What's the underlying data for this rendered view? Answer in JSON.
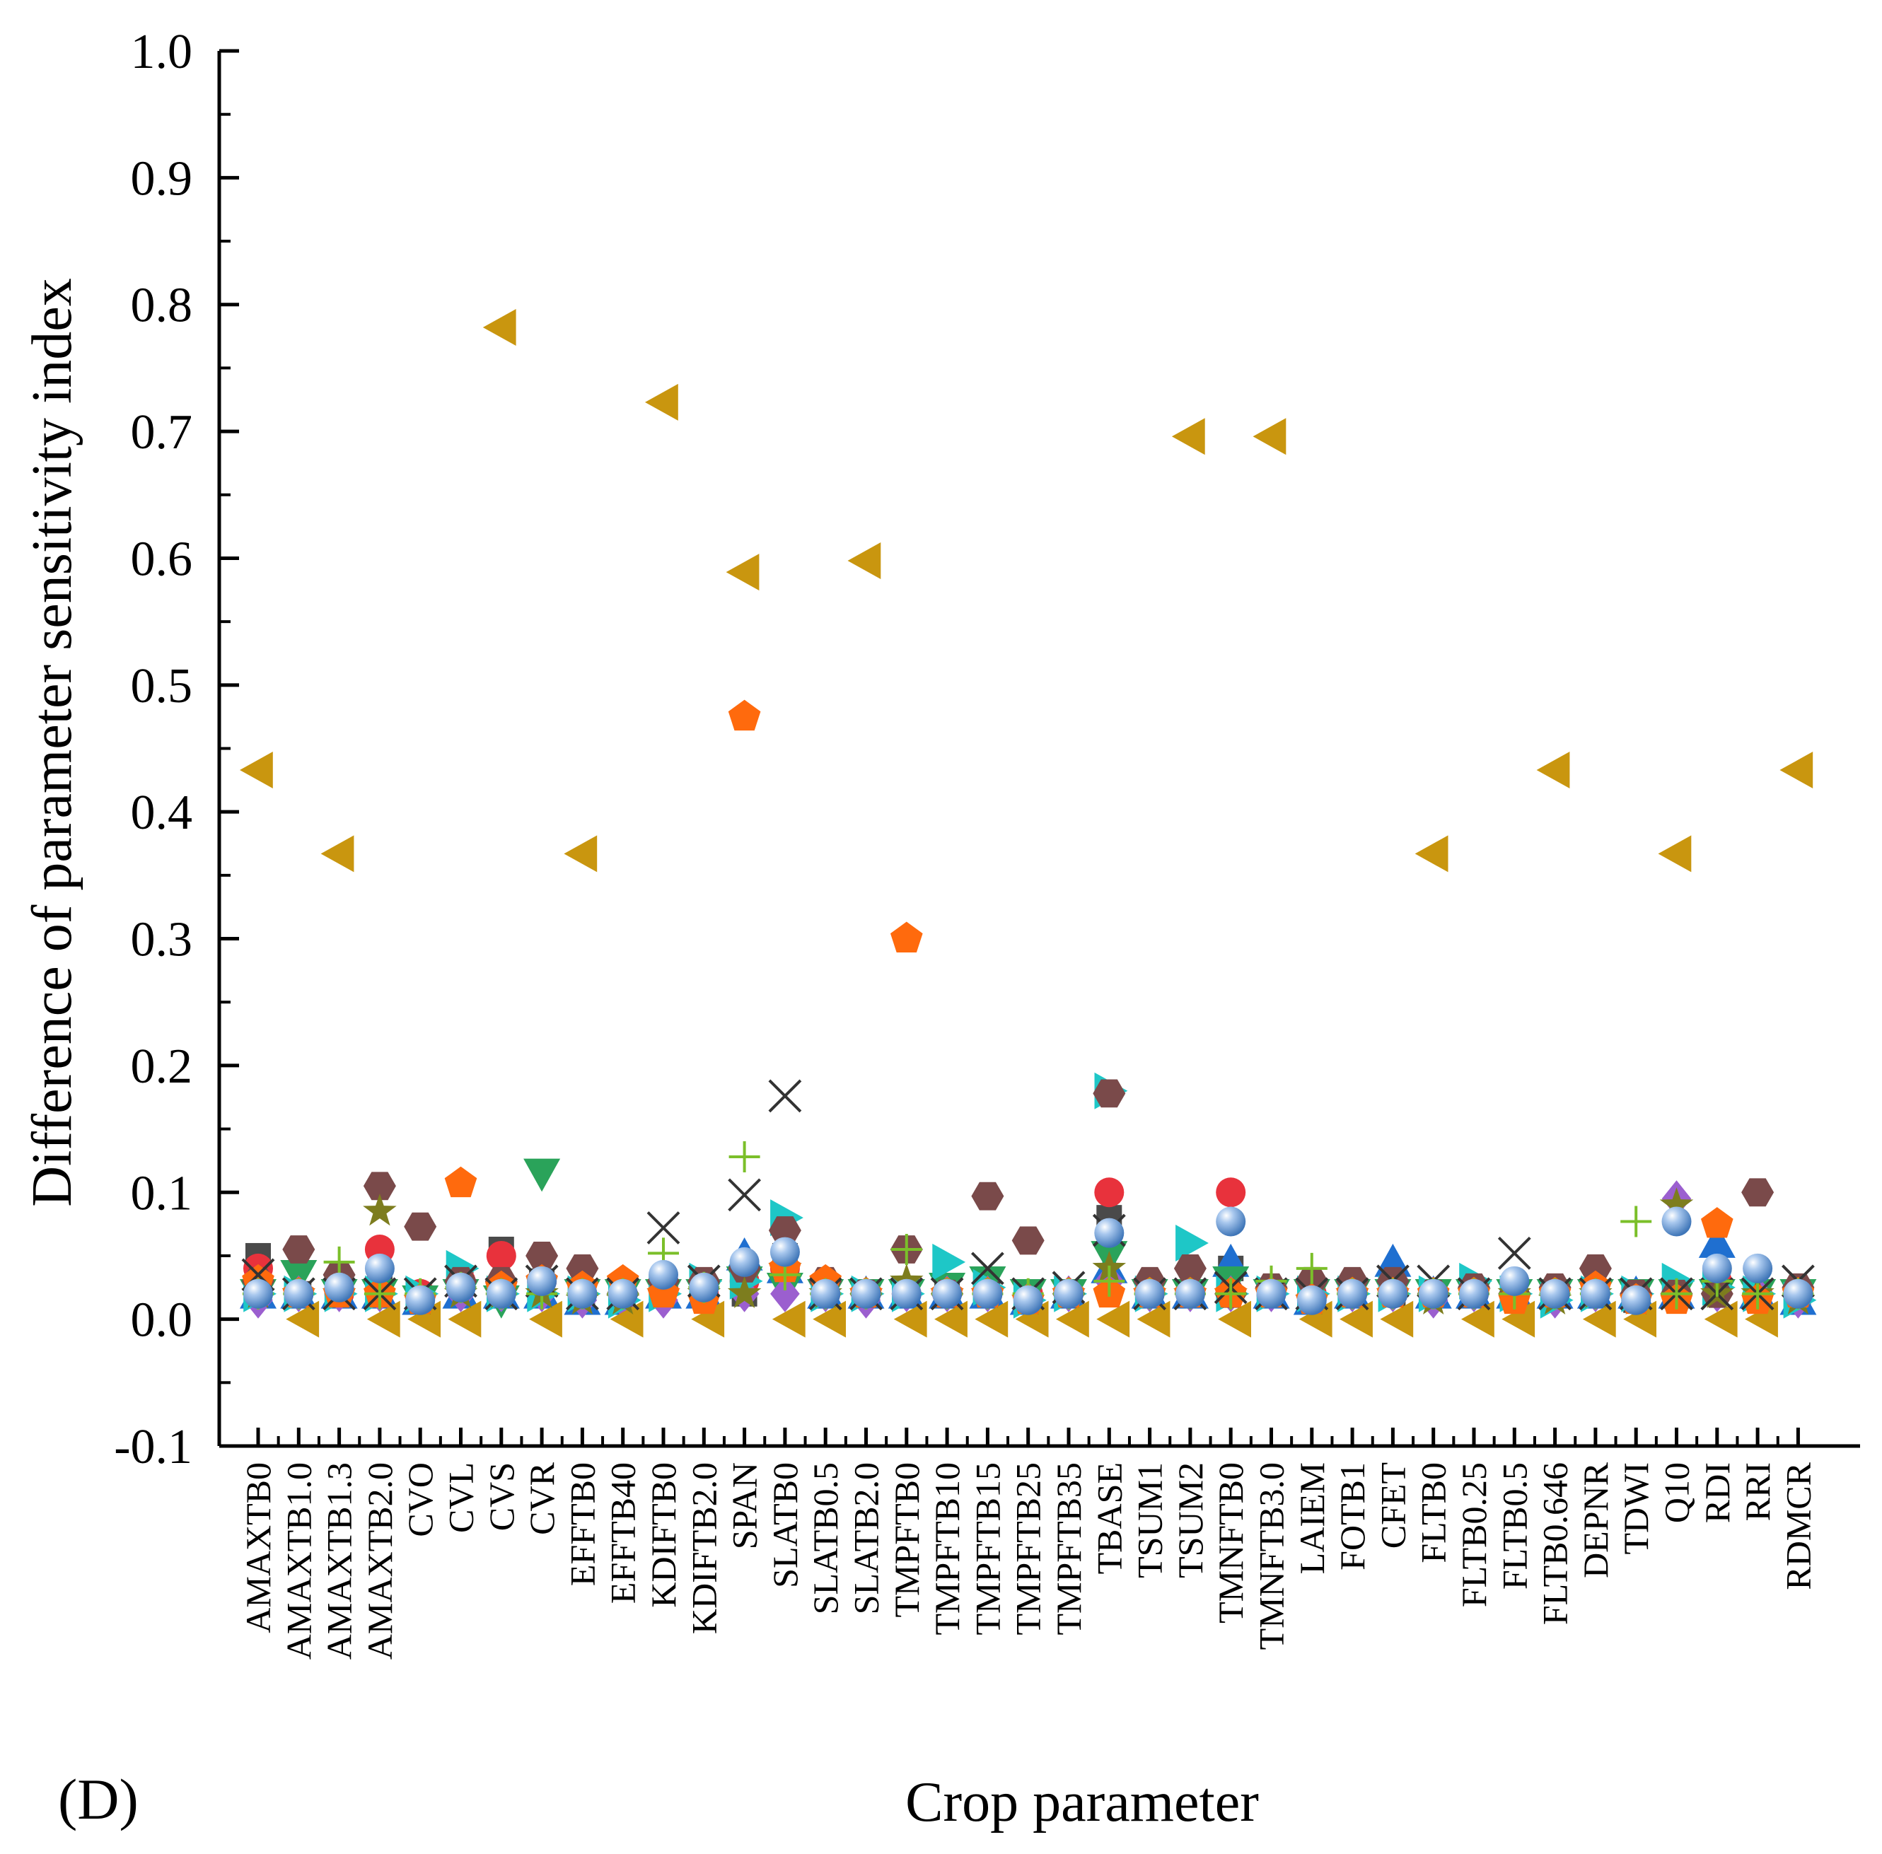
{
  "chart_data": {
    "type": "scatter",
    "title": "",
    "panel_label": "(D)",
    "xlabel": "Crop parameter",
    "ylabel": "Difference of parameter sensitivity index",
    "ylim": [
      -0.1,
      1.0
    ],
    "yticks": [
      "1.0",
      "0.9",
      "0.8",
      "0.7",
      "0.6",
      "0.5",
      "0.4",
      "0.3",
      "0.2",
      "0.1",
      "0.0",
      "-0.1"
    ],
    "grid": false,
    "legend": "none",
    "categories": [
      "AMAXTB0",
      "AMAXTB1.0",
      "AMAXTB1.3",
      "AMAXTB2.0",
      "CVO",
      "CVL",
      "CVS",
      "CVR",
      "EFFTB0",
      "EFFTB40",
      "KDIFTB0",
      "KDIFTB2.0",
      "SPAN",
      "SLATB0",
      "SLATB0.5",
      "SLATB2.0",
      "TMPFTB0",
      "TMPFTB10",
      "TMPFTB15",
      "TMPFTB25",
      "TMPFTB35",
      "TBASE",
      "TSUM1",
      "TSUM2",
      "TMNFTB0",
      "TMNFTB3.0",
      "LAIEM",
      "FOTB1",
      "CFET",
      "FLTB0",
      "FLTB0.25",
      "FLTB0.5",
      "FLTB0.646",
      "DEPNR",
      "TDWI",
      "Q10",
      "RDI",
      "RRI",
      "RDMCR"
    ],
    "series": [
      {
        "name": "square",
        "marker": "square",
        "color": "#4a4a4a",
        "values": [
          0.05,
          0.02,
          0.03,
          0.03,
          0.015,
          0.03,
          0.055,
          0.03,
          0.02,
          0.015,
          0.03,
          0.02,
          0.02,
          0.05,
          0.025,
          0.02,
          0.02,
          0.02,
          0.02,
          0.015,
          0.02,
          0.08,
          0.02,
          0.02,
          0.04,
          0.02,
          0.02,
          0.02,
          0.02,
          0.02,
          0.02,
          0.02,
          0.02,
          0.02,
          0.015,
          0.02,
          0.03,
          0.02,
          0.02
        ]
      },
      {
        "name": "circle",
        "marker": "circle",
        "color": "#e8323c",
        "values": [
          0.04,
          0.02,
          0.02,
          0.055,
          0.02,
          0.03,
          0.05,
          0.03,
          0.02,
          0.02,
          0.025,
          0.02,
          0.03,
          0.04,
          0.02,
          0.02,
          0.02,
          0.02,
          0.02,
          0.02,
          0.02,
          0.1,
          0.02,
          0.02,
          0.1,
          0.02,
          0.02,
          0.02,
          0.02,
          0.02,
          0.02,
          0.02,
          0.02,
          0.02,
          0.02,
          0.02,
          0.03,
          0.02,
          0.02
        ]
      },
      {
        "name": "triangle-up",
        "marker": "triangle-up",
        "color": "#1f6fd0",
        "values": [
          0.02,
          0.02,
          0.02,
          0.02,
          0.015,
          0.02,
          0.02,
          0.02,
          0.015,
          0.015,
          0.02,
          0.02,
          0.05,
          0.04,
          0.02,
          0.02,
          0.02,
          0.02,
          0.02,
          0.015,
          0.02,
          0.04,
          0.02,
          0.02,
          0.045,
          0.02,
          0.015,
          0.02,
          0.045,
          0.02,
          0.02,
          0.02,
          0.02,
          0.02,
          0.02,
          0.02,
          0.06,
          0.02,
          0.015
        ]
      },
      {
        "name": "triangle-down",
        "marker": "triangle-down",
        "color": "#2aa35a",
        "values": [
          0.02,
          0.035,
          0.02,
          0.02,
          0.015,
          0.02,
          0.015,
          0.115,
          0.02,
          0.02,
          0.02,
          0.02,
          0.03,
          0.025,
          0.02,
          0.02,
          0.02,
          0.025,
          0.03,
          0.02,
          0.02,
          0.05,
          0.02,
          0.02,
          0.03,
          0.02,
          0.02,
          0.02,
          0.02,
          0.02,
          0.02,
          0.02,
          0.02,
          0.02,
          0.02,
          0.02,
          0.02,
          0.02,
          0.02
        ]
      },
      {
        "name": "diamond",
        "marker": "diamond",
        "color": "#9b5fcf",
        "values": [
          0.015,
          0.02,
          0.02,
          0.02,
          0.015,
          0.02,
          0.02,
          0.02,
          0.015,
          0.015,
          0.015,
          0.02,
          0.02,
          0.02,
          0.02,
          0.015,
          0.02,
          0.02,
          0.02,
          0.015,
          0.02,
          0.03,
          0.02,
          0.02,
          0.02,
          0.02,
          0.015,
          0.02,
          0.02,
          0.015,
          0.02,
          0.02,
          0.015,
          0.02,
          0.015,
          0.095,
          0.02,
          0.02,
          0.015
        ]
      },
      {
        "name": "triangle-left",
        "marker": "triangle-left",
        "color": "#c9960f",
        "values": [
          0.433,
          0.0,
          0.367,
          0.0,
          0.0,
          0.0,
          0.782,
          0.0,
          0.367,
          0.0,
          0.723,
          0.0,
          0.589,
          0.0,
          0.0,
          0.598,
          0.0,
          0.0,
          0.0,
          0.0,
          0.0,
          0.0,
          0.0,
          0.696,
          0.0,
          0.696,
          0.0,
          0.0,
          0.0,
          0.367,
          0.0,
          0.0,
          0.433,
          0.0,
          0.0,
          0.367,
          0.0,
          0.0,
          0.433
        ]
      },
      {
        "name": "triangle-right",
        "marker": "triangle-right",
        "color": "#1ec7c7",
        "values": [
          0.02,
          0.02,
          0.02,
          0.02,
          0.02,
          0.04,
          0.02,
          0.02,
          0.02,
          0.015,
          0.02,
          0.03,
          0.03,
          0.08,
          0.02,
          0.02,
          0.02,
          0.045,
          0.025,
          0.015,
          0.02,
          0.18,
          0.02,
          0.06,
          0.02,
          0.02,
          0.02,
          0.02,
          0.02,
          0.02,
          0.03,
          0.02,
          0.015,
          0.02,
          0.02,
          0.03,
          0.025,
          0.02,
          0.015
        ]
      },
      {
        "name": "hexagon",
        "marker": "hexagon",
        "color": "#7a4a4a",
        "values": [
          0.03,
          0.055,
          0.035,
          0.105,
          0.073,
          0.03,
          0.03,
          0.05,
          0.04,
          0.02,
          0.03,
          0.03,
          0.04,
          0.07,
          0.03,
          0.02,
          0.055,
          0.02,
          0.097,
          0.062,
          0.02,
          0.178,
          0.03,
          0.04,
          0.02,
          0.025,
          0.03,
          0.03,
          0.03,
          0.02,
          0.025,
          0.02,
          0.025,
          0.04,
          0.02,
          0.02,
          0.02,
          0.1,
          0.025
        ]
      },
      {
        "name": "star",
        "marker": "star",
        "color": "#7d7d1e",
        "values": [
          0.02,
          0.02,
          0.02,
          0.085,
          0.015,
          0.02,
          0.02,
          0.02,
          0.015,
          0.015,
          0.02,
          0.02,
          0.02,
          0.04,
          0.02,
          0.02,
          0.03,
          0.02,
          0.02,
          0.015,
          0.02,
          0.04,
          0.02,
          0.02,
          0.02,
          0.02,
          0.015,
          0.02,
          0.02,
          0.015,
          0.02,
          0.02,
          0.015,
          0.02,
          0.015,
          0.09,
          0.02,
          0.02,
          0.015
        ]
      },
      {
        "name": "pentagon",
        "marker": "pentagon",
        "color": "#ff6a0d",
        "values": [
          0.03,
          0.02,
          0.02,
          0.02,
          0.015,
          0.107,
          0.025,
          0.03,
          0.025,
          0.03,
          0.02,
          0.015,
          0.475,
          0.04,
          0.03,
          0.02,
          0.3,
          0.02,
          0.02,
          0.015,
          0.02,
          0.02,
          0.02,
          0.02,
          0.02,
          0.02,
          0.015,
          0.02,
          0.02,
          0.02,
          0.02,
          0.015,
          0.02,
          0.025,
          0.015,
          0.015,
          0.075,
          0.015,
          0.02
        ]
      },
      {
        "name": "x-cross",
        "marker": "x",
        "color": "#333333",
        "values": [
          0.035,
          0.02,
          0.02,
          0.02,
          0.02,
          0.03,
          0.02,
          0.03,
          0.02,
          0.02,
          0.072,
          0.03,
          0.098,
          0.176,
          0.02,
          0.02,
          0.02,
          0.02,
          0.04,
          0.02,
          0.025,
          0.07,
          0.02,
          0.02,
          0.025,
          0.02,
          0.02,
          0.02,
          0.03,
          0.03,
          0.02,
          0.052,
          0.02,
          0.02,
          0.02,
          0.02,
          0.02,
          0.02,
          0.03
        ]
      },
      {
        "name": "plus",
        "marker": "plus",
        "color": "#7bbf2a",
        "values": [
          0.02,
          0.02,
          0.045,
          0.02,
          0.02,
          0.025,
          0.02,
          0.02,
          0.02,
          0.02,
          0.052,
          0.025,
          0.128,
          0.035,
          0.02,
          0.02,
          0.055,
          0.02,
          0.02,
          0.02,
          0.02,
          0.03,
          0.02,
          0.02,
          0.02,
          0.03,
          0.04,
          0.02,
          0.02,
          0.02,
          0.02,
          0.02,
          0.02,
          0.02,
          0.077,
          0.02,
          0.03,
          0.02,
          0.02
        ]
      },
      {
        "name": "ball",
        "marker": "ball",
        "color": "#6a9fd8",
        "values": [
          0.02,
          0.02,
          0.025,
          0.04,
          0.015,
          0.025,
          0.02,
          0.03,
          0.02,
          0.02,
          0.035,
          0.025,
          0.045,
          0.053,
          0.02,
          0.02,
          0.02,
          0.02,
          0.02,
          0.015,
          0.02,
          0.068,
          0.02,
          0.02,
          0.077,
          0.02,
          0.015,
          0.02,
          0.02,
          0.02,
          0.02,
          0.03,
          0.02,
          0.02,
          0.015,
          0.077,
          0.04,
          0.04,
          0.02
        ]
      }
    ]
  }
}
